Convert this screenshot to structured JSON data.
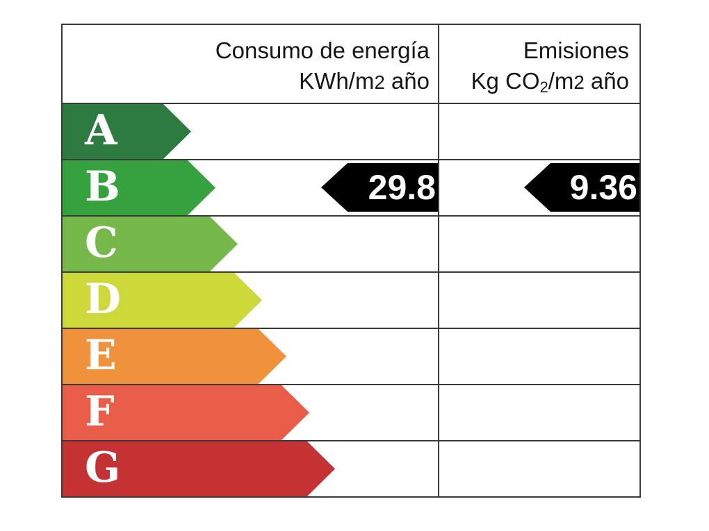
{
  "header": {
    "col1": {
      "line1": "Consumo de energía",
      "line2_pre": "KWh/m",
      "line2_digit": "2",
      "line2_tail": " año"
    },
    "col2": {
      "line1": "Emisiones",
      "line2_pre": "Kg CO",
      "line2_sub": "2",
      "line2_mid": "/m",
      "line2_digit": "2",
      "line2_tail": " año"
    }
  },
  "ratings": [
    {
      "letter": "A",
      "color": "#2d7b40",
      "arrow_width": 185
    },
    {
      "letter": "B",
      "color": "#36a23d",
      "arrow_width": 220
    },
    {
      "letter": "C",
      "color": "#76b84a",
      "arrow_width": 252
    },
    {
      "letter": "D",
      "color": "#cdd938",
      "arrow_width": 287
    },
    {
      "letter": "E",
      "color": "#f0913c",
      "arrow_width": 322
    },
    {
      "letter": "F",
      "color": "#e95c47",
      "arrow_width": 355
    },
    {
      "letter": "G",
      "color": "#c43233",
      "arrow_width": 392
    }
  ],
  "values": {
    "rating_row": "B",
    "consumo": "29.8",
    "emisiones": "9.36",
    "marker_color": "#000000",
    "text_color": "#ffffff"
  },
  "style": {
    "border_color": "#3a3a3a",
    "background": "#ffffff"
  },
  "chart_data": {
    "type": "bar",
    "orientation": "horizontal",
    "title": "",
    "categories": [
      "A",
      "B",
      "C",
      "D",
      "E",
      "F",
      "G"
    ],
    "band_colors": [
      "#2d7b40",
      "#36a23d",
      "#76b84a",
      "#cdd938",
      "#f0913c",
      "#e95c47",
      "#c43233"
    ],
    "band_relative_lengths": [
      0.34,
      0.41,
      0.47,
      0.53,
      0.6,
      0.65,
      0.72
    ],
    "columns": [
      {
        "header": "Consumo de energía KWh/m2 año",
        "value": 29.8,
        "rating": "B"
      },
      {
        "header": "Emisiones Kg CO2/m2 año",
        "value": 9.36,
        "rating": "B"
      }
    ],
    "value_marker_color": "#000000",
    "legend_position": "none",
    "grid": false
  }
}
